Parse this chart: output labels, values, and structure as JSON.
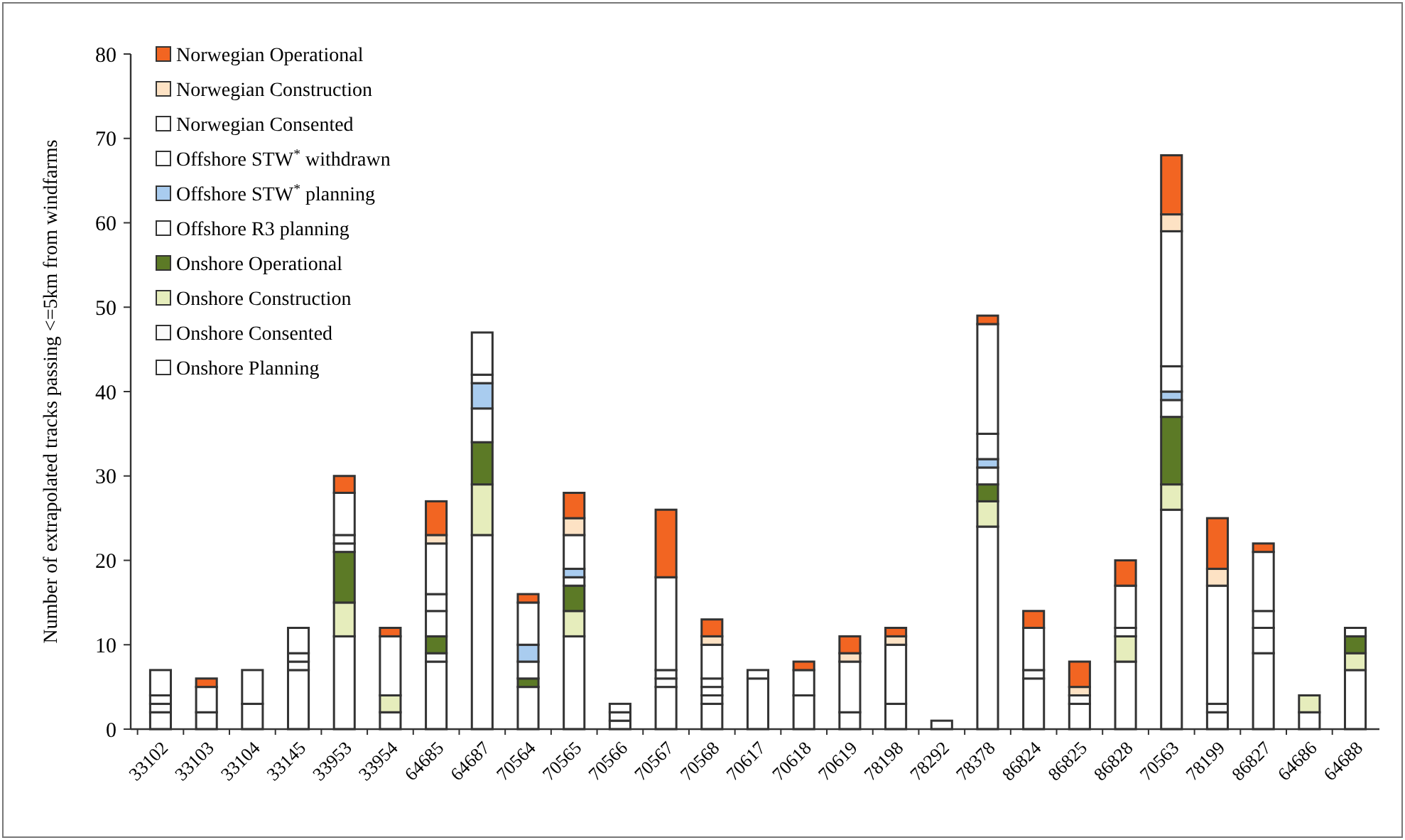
{
  "chart_data": {
    "type": "bar",
    "stacked": true,
    "ylabel": "Number of extrapolated tracks passing <=5km from windfarms",
    "categories": [
      "33102",
      "33103",
      "33104",
      "33145",
      "33953",
      "33954",
      "64685",
      "64687",
      "70564",
      "70565",
      "70566",
      "70567",
      "70568",
      "70617",
      "70618",
      "70619",
      "78198",
      "78292",
      "78378",
      "86824",
      "86825",
      "86828",
      "70563",
      "78199",
      "86827",
      "64686",
      "64688"
    ],
    "series": [
      {
        "name": "Onshore Planning",
        "color": "#ffffff",
        "values": [
          2,
          2,
          3,
          7,
          11,
          2,
          8,
          23,
          5,
          11,
          1,
          5,
          3,
          6,
          4,
          2,
          3,
          1,
          24,
          6,
          3,
          8,
          26,
          2,
          9,
          2,
          7
        ]
      },
      {
        "name": "Onshore Consented",
        "color": "#fbfbfb",
        "values": [
          1,
          0,
          0,
          1,
          0,
          0,
          1,
          0,
          0,
          0,
          1,
          1,
          1,
          0,
          0,
          0,
          0,
          0,
          0,
          1,
          1,
          0,
          0,
          1,
          0,
          0,
          0
        ]
      },
      {
        "name": "Onshore Construction",
        "color": "#e6edbc",
        "values": [
          0,
          0,
          0,
          0,
          4,
          2,
          0,
          6,
          0,
          3,
          0,
          0,
          0,
          0,
          0,
          0,
          0,
          0,
          3,
          0,
          0,
          3,
          3,
          0,
          0,
          2,
          2
        ]
      },
      {
        "name": "Onshore Operational",
        "color": "#5c7a26",
        "values": [
          0,
          0,
          0,
          0,
          6,
          0,
          2,
          5,
          1,
          3,
          0,
          0,
          0,
          0,
          0,
          0,
          0,
          0,
          2,
          0,
          0,
          0,
          8,
          0,
          0,
          0,
          2
        ]
      },
      {
        "name": "Offshore R3 planning",
        "color": "#ffffff",
        "values": [
          1,
          3,
          4,
          1,
          1,
          7,
          3,
          4,
          2,
          1,
          1,
          1,
          1,
          1,
          3,
          6,
          7,
          0,
          2,
          5,
          0,
          1,
          2,
          14,
          3,
          0,
          1
        ]
      },
      {
        "name": "Offshore STW$^{*}$ planning",
        "color": "#a9ccef",
        "values": [
          0,
          0,
          0,
          0,
          0,
          0,
          0,
          3,
          2,
          1,
          0,
          0,
          0,
          0,
          0,
          0,
          0,
          0,
          1,
          0,
          0,
          0,
          1,
          0,
          0,
          0,
          0
        ]
      },
      {
        "name": "Offshore STW$^{*}$ withdrawn",
        "color": "#ffffff",
        "values": [
          3,
          0,
          0,
          3,
          1,
          0,
          2,
          1,
          5,
          4,
          0,
          11,
          1,
          0,
          0,
          0,
          0,
          0,
          3,
          0,
          0,
          0,
          3,
          0,
          2,
          0,
          0
        ]
      },
      {
        "name": "Norwegian Consented",
        "color": "#ffffff",
        "values": [
          0,
          0,
          0,
          0,
          5,
          0,
          6,
          5,
          0,
          0,
          0,
          0,
          4,
          0,
          0,
          0,
          0,
          0,
          13,
          0,
          0,
          5,
          16,
          0,
          7,
          0,
          0
        ]
      },
      {
        "name": "Norwegian Construction",
        "color": "#fde2c4",
        "values": [
          0,
          0,
          0,
          0,
          0,
          0,
          1,
          0,
          0,
          2,
          0,
          0,
          1,
          0,
          0,
          1,
          1,
          0,
          0,
          0,
          1,
          0,
          2,
          2,
          0,
          0,
          0
        ]
      },
      {
        "name": "Norwegian Operational",
        "color": "#f26522",
        "values": [
          0,
          1,
          0,
          0,
          2,
          1,
          4,
          0,
          1,
          3,
          0,
          8,
          2,
          0,
          1,
          2,
          1,
          0,
          1,
          2,
          3,
          3,
          7,
          6,
          1,
          0,
          0
        ]
      }
    ],
    "ylim": [
      0,
      80
    ],
    "yticks": [
      0,
      10,
      20,
      30,
      40,
      50,
      60,
      70,
      80
    ],
    "legend": "top left"
  }
}
